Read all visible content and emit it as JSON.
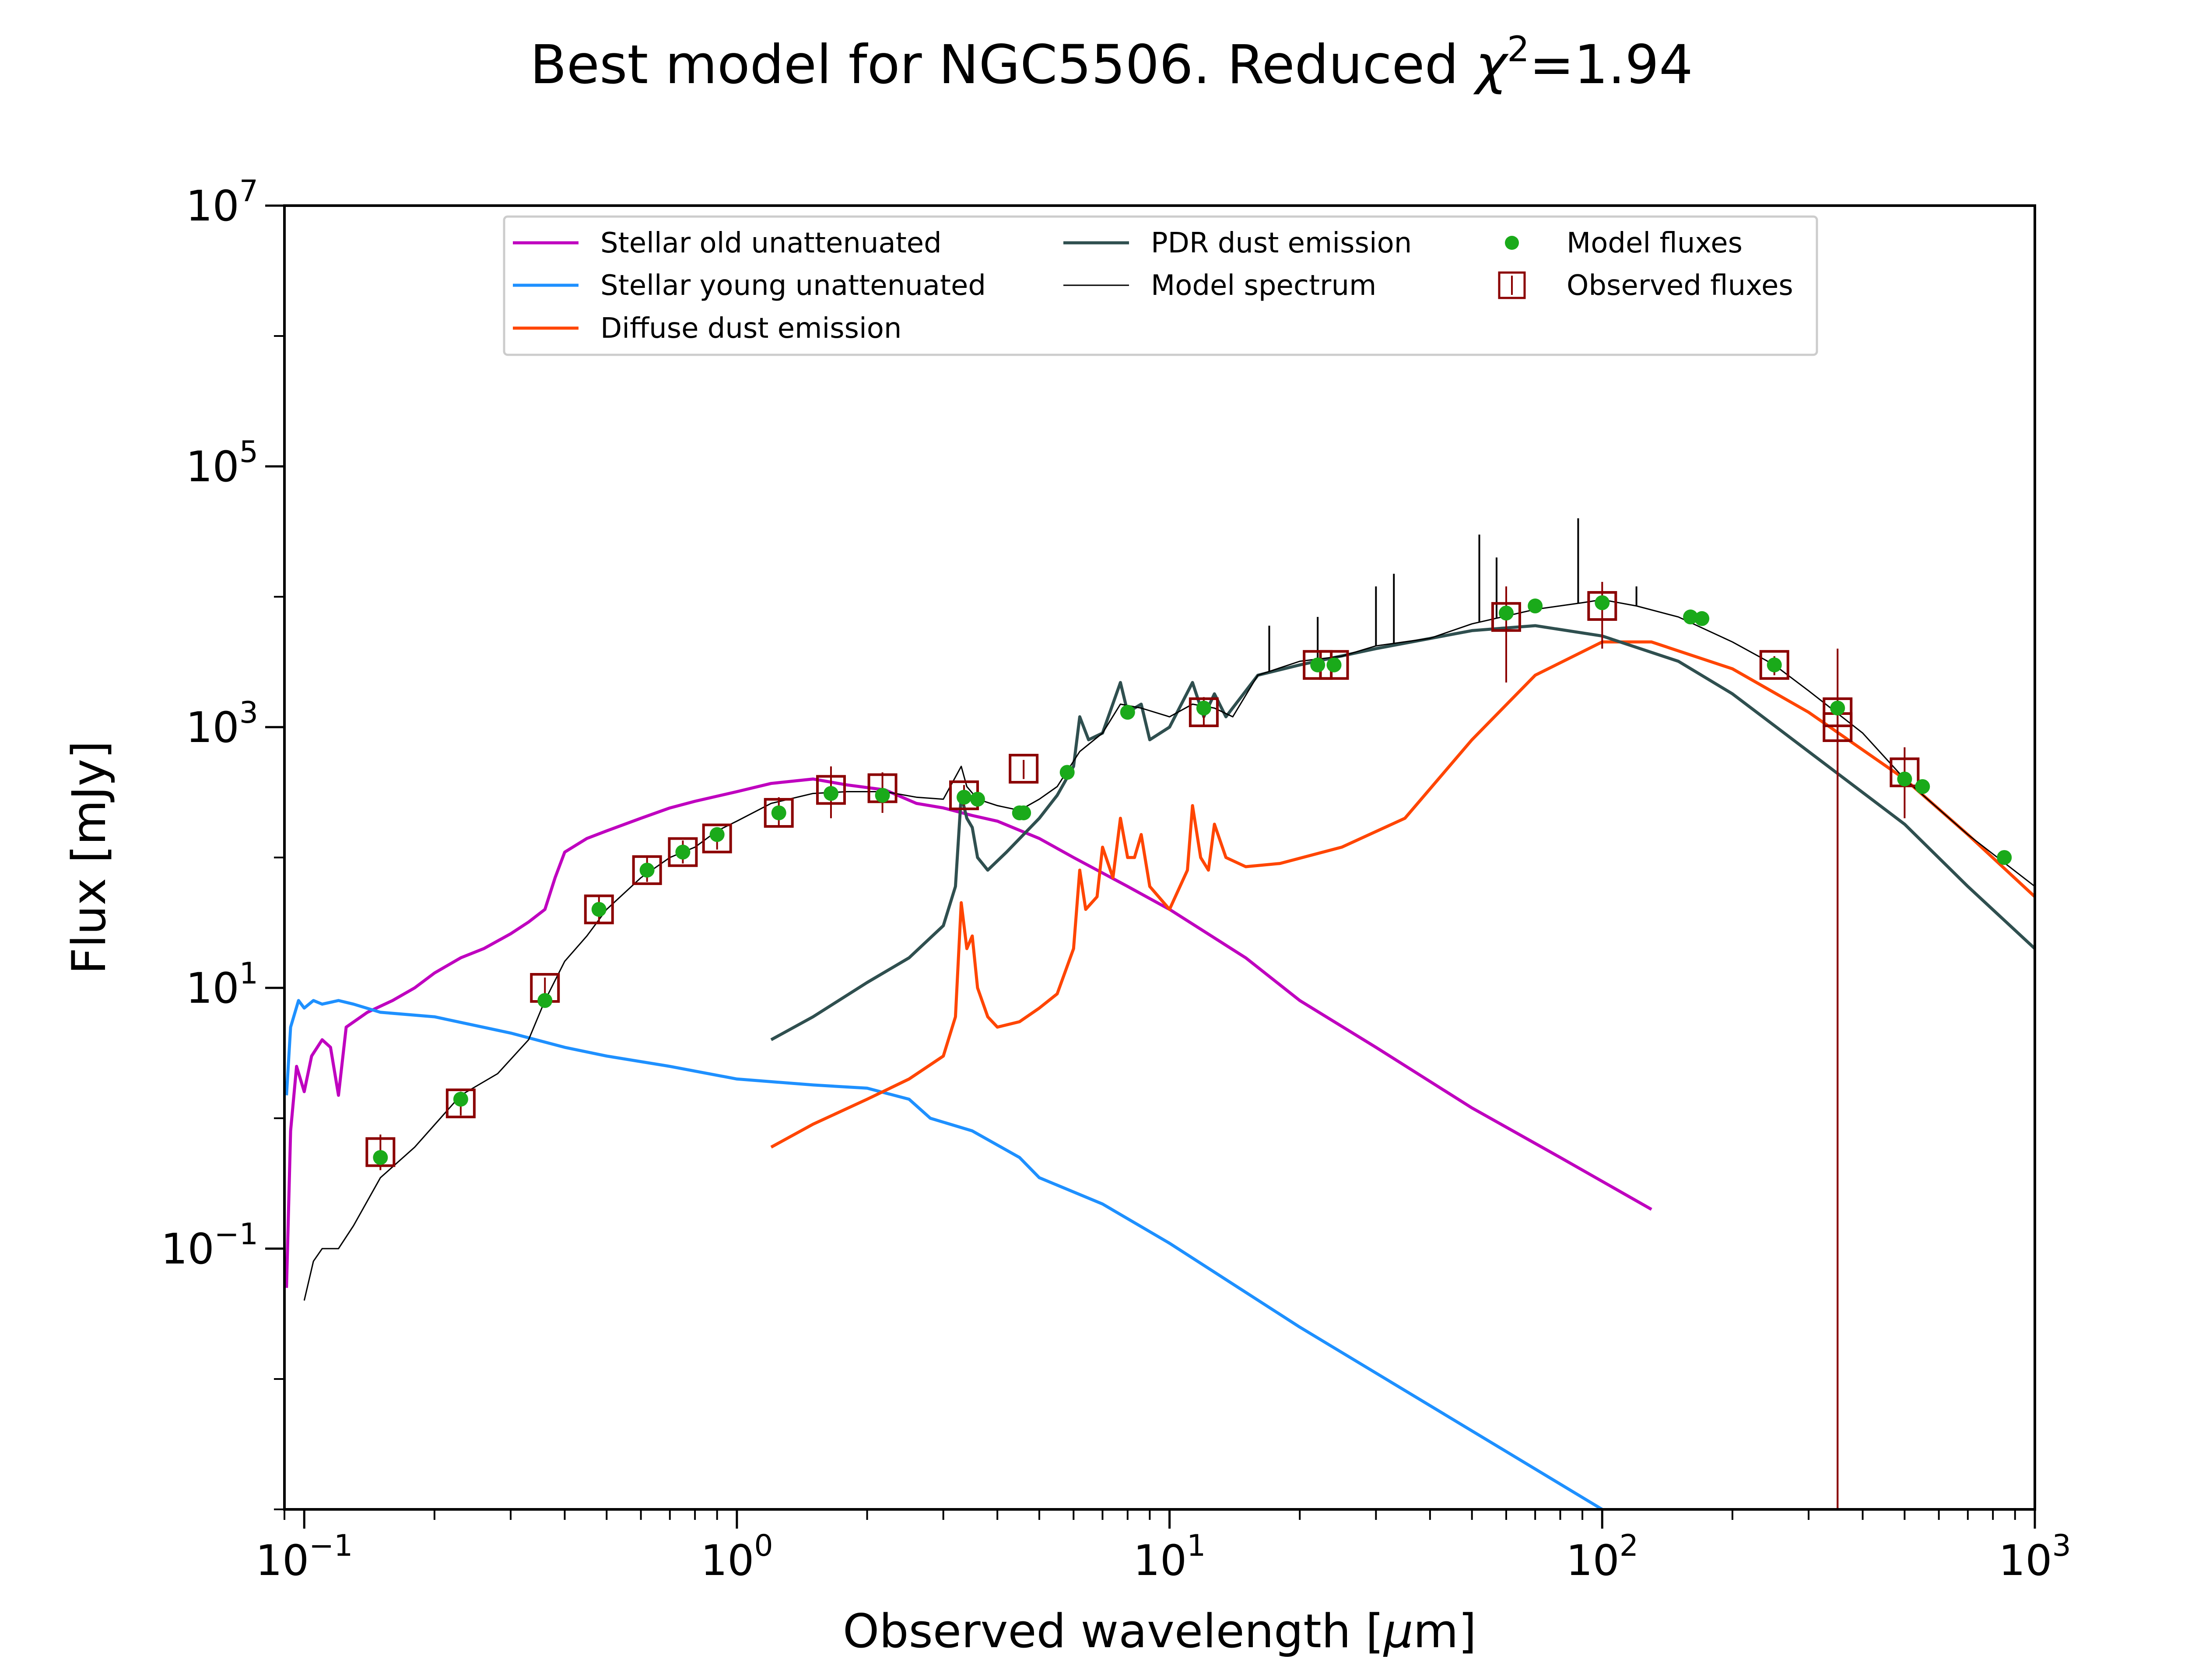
{
  "chart_data": {
    "type": "line",
    "title": "Best model for NGC5506. Reduced χ²=1.94",
    "title_parts": {
      "prefix": "Best model for NGC5506. Reduced ",
      "chi": "χ",
      "sup": "2",
      "suffix": "=1.94"
    },
    "xlabel": "Observed wavelength [μm]",
    "xlabel_parts": {
      "prefix": "Observed wavelength [",
      "mu": "μ",
      "suffix": "m]"
    },
    "ylabel": "Flux [mJy]",
    "x_scale": "log",
    "y_scale": "log",
    "xlim": [
      0.09,
      1000
    ],
    "ylim": [
      0.001,
      10000000
    ],
    "x_ticks": [
      {
        "value": 0.1,
        "base": "10",
        "exp": "−1"
      },
      {
        "value": 1,
        "base": "10",
        "exp": "0"
      },
      {
        "value": 10,
        "base": "10",
        "exp": "1"
      },
      {
        "value": 100,
        "base": "10",
        "exp": "2"
      },
      {
        "value": 1000,
        "base": "10",
        "exp": "3"
      }
    ],
    "y_ticks": [
      {
        "value": 0.1,
        "base": "10",
        "exp": "−1"
      },
      {
        "value": 10,
        "base": "10",
        "exp": "1"
      },
      {
        "value": 1000,
        "base": "10",
        "exp": "3"
      },
      {
        "value": 100000,
        "base": "10",
        "exp": "5"
      },
      {
        "value": 10000000,
        "base": "10",
        "exp": "7"
      }
    ],
    "legend_position": "upper center",
    "grid": false,
    "series": [
      {
        "name": "Stellar old unattenuated",
        "kind": "line",
        "color": "#bf00bf",
        "width": 7,
        "points": [
          [
            0.091,
            0.05
          ],
          [
            0.093,
            0.8
          ],
          [
            0.096,
            2.5
          ],
          [
            0.1,
            1.6
          ],
          [
            0.104,
            3
          ],
          [
            0.11,
            4
          ],
          [
            0.115,
            3.5
          ],
          [
            0.12,
            1.5
          ],
          [
            0.125,
            5
          ],
          [
            0.14,
            6.5
          ],
          [
            0.16,
            8
          ],
          [
            0.18,
            10
          ],
          [
            0.2,
            13
          ],
          [
            0.23,
            17
          ],
          [
            0.26,
            20
          ],
          [
            0.3,
            26
          ],
          [
            0.33,
            32
          ],
          [
            0.36,
            40
          ],
          [
            0.38,
            70
          ],
          [
            0.4,
            110
          ],
          [
            0.45,
            140
          ],
          [
            0.5,
            160
          ],
          [
            0.6,
            200
          ],
          [
            0.7,
            240
          ],
          [
            0.8,
            270
          ],
          [
            1.0,
            320
          ],
          [
            1.2,
            370
          ],
          [
            1.5,
            400
          ],
          [
            1.8,
            360
          ],
          [
            2.2,
            330
          ],
          [
            2.6,
            260
          ],
          [
            3.0,
            240
          ],
          [
            3.5,
            210
          ],
          [
            4.0,
            190
          ],
          [
            5.0,
            140
          ],
          [
            6.0,
            100
          ],
          [
            8.0,
            60
          ],
          [
            10.0,
            40
          ],
          [
            15.0,
            17
          ],
          [
            20.0,
            8
          ],
          [
            30.0,
            3.5
          ],
          [
            50.0,
            1.2
          ],
          [
            80.0,
            0.5
          ],
          [
            130.0,
            0.2
          ]
        ]
      },
      {
        "name": "Stellar young unattenuated",
        "kind": "line",
        "color": "#1e90ff",
        "width": 7,
        "points": [
          [
            0.091,
            1.5
          ],
          [
            0.093,
            5
          ],
          [
            0.097,
            8
          ],
          [
            0.1,
            7
          ],
          [
            0.105,
            8
          ],
          [
            0.11,
            7.5
          ],
          [
            0.12,
            8
          ],
          [
            0.13,
            7.5
          ],
          [
            0.15,
            6.5
          ],
          [
            0.2,
            6
          ],
          [
            0.3,
            4.5
          ],
          [
            0.4,
            3.5
          ],
          [
            0.5,
            3
          ],
          [
            0.7,
            2.5
          ],
          [
            1.0,
            2
          ],
          [
            1.5,
            1.8
          ],
          [
            2.0,
            1.7
          ],
          [
            2.5,
            1.4
          ],
          [
            2.8,
            1.0
          ],
          [
            3.5,
            0.8
          ],
          [
            4.5,
            0.5
          ],
          [
            5.0,
            0.35
          ],
          [
            7.0,
            0.22
          ],
          [
            10.0,
            0.11
          ],
          [
            20.0,
            0.025
          ],
          [
            50.0,
            0.004
          ],
          [
            100.0,
            0.001
          ]
        ]
      },
      {
        "name": "Diffuse dust emission",
        "kind": "line",
        "color": "#ff4500",
        "width": 7,
        "points": [
          [
            1.2,
            0.6
          ],
          [
            1.5,
            0.9
          ],
          [
            2.0,
            1.4
          ],
          [
            2.5,
            2.0
          ],
          [
            3.0,
            3.0
          ],
          [
            3.2,
            6
          ],
          [
            3.3,
            45
          ],
          [
            3.4,
            20
          ],
          [
            3.5,
            25
          ],
          [
            3.6,
            10
          ],
          [
            3.8,
            6
          ],
          [
            4.0,
            5
          ],
          [
            4.5,
            5.5
          ],
          [
            5.0,
            7
          ],
          [
            5.5,
            9
          ],
          [
            6.0,
            20
          ],
          [
            6.2,
            80
          ],
          [
            6.4,
            40
          ],
          [
            6.8,
            50
          ],
          [
            7.0,
            120
          ],
          [
            7.4,
            70
          ],
          [
            7.7,
            200
          ],
          [
            8.0,
            100
          ],
          [
            8.3,
            100
          ],
          [
            8.6,
            150
          ],
          [
            9.0,
            60
          ],
          [
            10.0,
            40
          ],
          [
            11.0,
            80
          ],
          [
            11.3,
            250
          ],
          [
            11.8,
            100
          ],
          [
            12.3,
            80
          ],
          [
            12.7,
            180
          ],
          [
            13.5,
            100
          ],
          [
            15.0,
            85
          ],
          [
            18.0,
            90
          ],
          [
            25.0,
            120
          ],
          [
            35.0,
            200
          ],
          [
            50.0,
            800
          ],
          [
            70.0,
            2500
          ],
          [
            100.0,
            4500
          ],
          [
            130.0,
            4500
          ],
          [
            200.0,
            2800
          ],
          [
            300.0,
            1300
          ],
          [
            500.0,
            400
          ],
          [
            700.0,
            150
          ],
          [
            1000.0,
            50
          ]
        ]
      },
      {
        "name": "PDR dust emission",
        "kind": "line",
        "color": "#2f4f4f",
        "width": 7,
        "points": [
          [
            1.2,
            4
          ],
          [
            1.5,
            6
          ],
          [
            2.0,
            11
          ],
          [
            2.5,
            17
          ],
          [
            3.0,
            30
          ],
          [
            3.2,
            60
          ],
          [
            3.3,
            300
          ],
          [
            3.4,
            200
          ],
          [
            3.5,
            170
          ],
          [
            3.6,
            100
          ],
          [
            3.8,
            80
          ],
          [
            4.2,
            110
          ],
          [
            5.0,
            200
          ],
          [
            5.5,
            300
          ],
          [
            6.0,
            500
          ],
          [
            6.2,
            1200
          ],
          [
            6.5,
            800
          ],
          [
            7.0,
            900
          ],
          [
            7.7,
            2200
          ],
          [
            8.0,
            1300
          ],
          [
            8.6,
            1500
          ],
          [
            9.0,
            800
          ],
          [
            10.0,
            1000
          ],
          [
            11.3,
            2200
          ],
          [
            12.0,
            1200
          ],
          [
            12.7,
            1800
          ],
          [
            13.5,
            1200
          ],
          [
            16.0,
            2500
          ],
          [
            20.0,
            3000
          ],
          [
            30.0,
            4000
          ],
          [
            50.0,
            5500
          ],
          [
            70.0,
            6000
          ],
          [
            100.0,
            5000
          ],
          [
            150.0,
            3200
          ],
          [
            200.0,
            1800
          ],
          [
            300.0,
            650
          ],
          [
            500.0,
            180
          ],
          [
            700.0,
            60
          ],
          [
            1000.0,
            20
          ]
        ]
      },
      {
        "name": "Model spectrum",
        "kind": "line",
        "color": "#000000",
        "width": 3,
        "points": [
          [
            0.1,
            0.04
          ],
          [
            0.105,
            0.08
          ],
          [
            0.11,
            0.1
          ],
          [
            0.12,
            0.1
          ],
          [
            0.13,
            0.15
          ],
          [
            0.15,
            0.35
          ],
          [
            0.18,
            0.6
          ],
          [
            0.23,
            1.5
          ],
          [
            0.28,
            2.2
          ],
          [
            0.33,
            4
          ],
          [
            0.36,
            8
          ],
          [
            0.4,
            16
          ],
          [
            0.45,
            25
          ],
          [
            0.5,
            40
          ],
          [
            0.6,
            70
          ],
          [
            0.7,
            100
          ],
          [
            0.8,
            120
          ],
          [
            0.9,
            160
          ],
          [
            1.0,
            190
          ],
          [
            1.2,
            260
          ],
          [
            1.5,
            310
          ],
          [
            1.8,
            320
          ],
          [
            2.2,
            320
          ],
          [
            2.6,
            290
          ],
          [
            3.0,
            280
          ],
          [
            3.3,
            500
          ],
          [
            3.4,
            350
          ],
          [
            3.6,
            280
          ],
          [
            4.0,
            250
          ],
          [
            4.5,
            230
          ],
          [
            5.0,
            280
          ],
          [
            5.5,
            350
          ],
          [
            6.2,
            650
          ],
          [
            7.0,
            900
          ],
          [
            7.7,
            1500
          ],
          [
            8.6,
            1400
          ],
          [
            10.0,
            1200
          ],
          [
            11.3,
            1500
          ],
          [
            12.7,
            1400
          ],
          [
            14.0,
            1200
          ],
          [
            16.0,
            2500
          ],
          [
            20.0,
            3200
          ],
          [
            25.0,
            3500
          ],
          [
            30.0,
            4200
          ],
          [
            40.0,
            4800
          ],
          [
            50.0,
            6200
          ],
          [
            70.0,
            8000
          ],
          [
            90.0,
            9000
          ],
          [
            100.0,
            9500
          ],
          [
            120.0,
            8500
          ],
          [
            150.0,
            7000
          ],
          [
            200.0,
            4500
          ],
          [
            250.0,
            3000
          ],
          [
            300.0,
            1900
          ],
          [
            400.0,
            900
          ],
          [
            500.0,
            400
          ],
          [
            700.0,
            150
          ],
          [
            1000.0,
            60
          ]
        ]
      }
    ],
    "spectral_lines": [
      [
        17,
        6000
      ],
      [
        22,
        7000
      ],
      [
        30,
        12000
      ],
      [
        33,
        15000
      ],
      [
        52,
        30000
      ],
      [
        57,
        20000
      ],
      [
        88,
        40000
      ],
      [
        120,
        12000
      ]
    ],
    "model_fluxes": {
      "name": "Model fluxes",
      "color": "#1aaa1a",
      "points": [
        [
          0.15,
          0.5
        ],
        [
          0.23,
          1.4
        ],
        [
          0.36,
          8
        ],
        [
          0.48,
          40
        ],
        [
          0.62,
          80
        ],
        [
          0.75,
          110
        ],
        [
          0.9,
          150
        ],
        [
          1.25,
          220
        ],
        [
          1.65,
          310
        ],
        [
          2.17,
          300
        ],
        [
          3.35,
          290
        ],
        [
          3.6,
          280
        ],
        [
          4.5,
          220
        ],
        [
          4.6,
          220
        ],
        [
          5.8,
          450
        ],
        [
          8.0,
          1300
        ],
        [
          12.0,
          1400
        ],
        [
          22.0,
          3000
        ],
        [
          24.0,
          3000
        ],
        [
          60.0,
          7500
        ],
        [
          70.0,
          8500
        ],
        [
          100.0,
          9000
        ],
        [
          160.0,
          7000
        ],
        [
          170.0,
          6800
        ],
        [
          250.0,
          3000
        ],
        [
          350.0,
          1400
        ],
        [
          500.0,
          400
        ],
        [
          550.0,
          350
        ],
        [
          850.0,
          100
        ]
      ]
    },
    "observed_fluxes": {
      "name": "Observed fluxes",
      "color": "#8b0000",
      "points": [
        {
          "x": 0.15,
          "y": 0.55,
          "lo": 0.4,
          "hi": 0.75
        },
        {
          "x": 0.23,
          "y": 1.3,
          "lo": 1.05,
          "hi": 1.6
        },
        {
          "x": 0.36,
          "y": 10,
          "lo": 8,
          "hi": 12
        },
        {
          "x": 0.48,
          "y": 40,
          "lo": 32,
          "hi": 50
        },
        {
          "x": 0.62,
          "y": 80,
          "lo": 65,
          "hi": 100
        },
        {
          "x": 0.75,
          "y": 110,
          "lo": 90,
          "hi": 135
        },
        {
          "x": 0.9,
          "y": 140,
          "lo": 115,
          "hi": 170
        },
        {
          "x": 1.25,
          "y": 220,
          "lo": 170,
          "hi": 290
        },
        {
          "x": 1.65,
          "y": 330,
          "lo": 200,
          "hi": 500
        },
        {
          "x": 2.17,
          "y": 340,
          "lo": 220,
          "hi": 450
        },
        {
          "x": 3.35,
          "y": 300,
          "lo": 250,
          "hi": 360
        },
        {
          "x": 4.6,
          "y": 480,
          "lo": 400,
          "hi": 560
        },
        {
          "x": 12.0,
          "y": 1300,
          "lo": 1000,
          "hi": 1700
        },
        {
          "x": 22.0,
          "y": 3000,
          "lo": 2700,
          "hi": 3400
        },
        {
          "x": 24.0,
          "y": 3000,
          "lo": 2700,
          "hi": 3400
        },
        {
          "x": 60.0,
          "y": 7000,
          "lo": 2200,
          "hi": 12000
        },
        {
          "x": 100.0,
          "y": 8500,
          "lo": 4000,
          "hi": 13000
        },
        {
          "x": 250.0,
          "y": 3000,
          "lo": 2500,
          "hi": 3500
        },
        {
          "x": 350.0,
          "y": 1300,
          "lo": 0.001,
          "hi": 4000
        },
        {
          "x": 350.0,
          "y": 1000,
          "lo": 0.001,
          "hi": 1500
        },
        {
          "x": 500.0,
          "y": 450,
          "lo": 200,
          "hi": 700
        }
      ]
    }
  }
}
